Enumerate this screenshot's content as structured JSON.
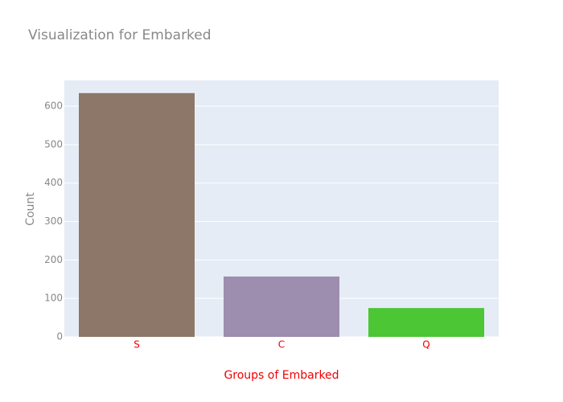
{
  "chart_data": {
    "type": "bar",
    "title": "Visualization for Embarked",
    "x_label": "Groups of Embarked",
    "y_label": "Count",
    "categories": [
      "S",
      "C",
      "Q"
    ],
    "values": [
      634,
      157,
      75
    ],
    "colors": [
      "#8c7769",
      "#9d8dae",
      "#4cc634"
    ],
    "ylim": [
      0,
      667
    ],
    "yticks": [
      0,
      100,
      200,
      300,
      400,
      500,
      600
    ],
    "grid": true
  }
}
